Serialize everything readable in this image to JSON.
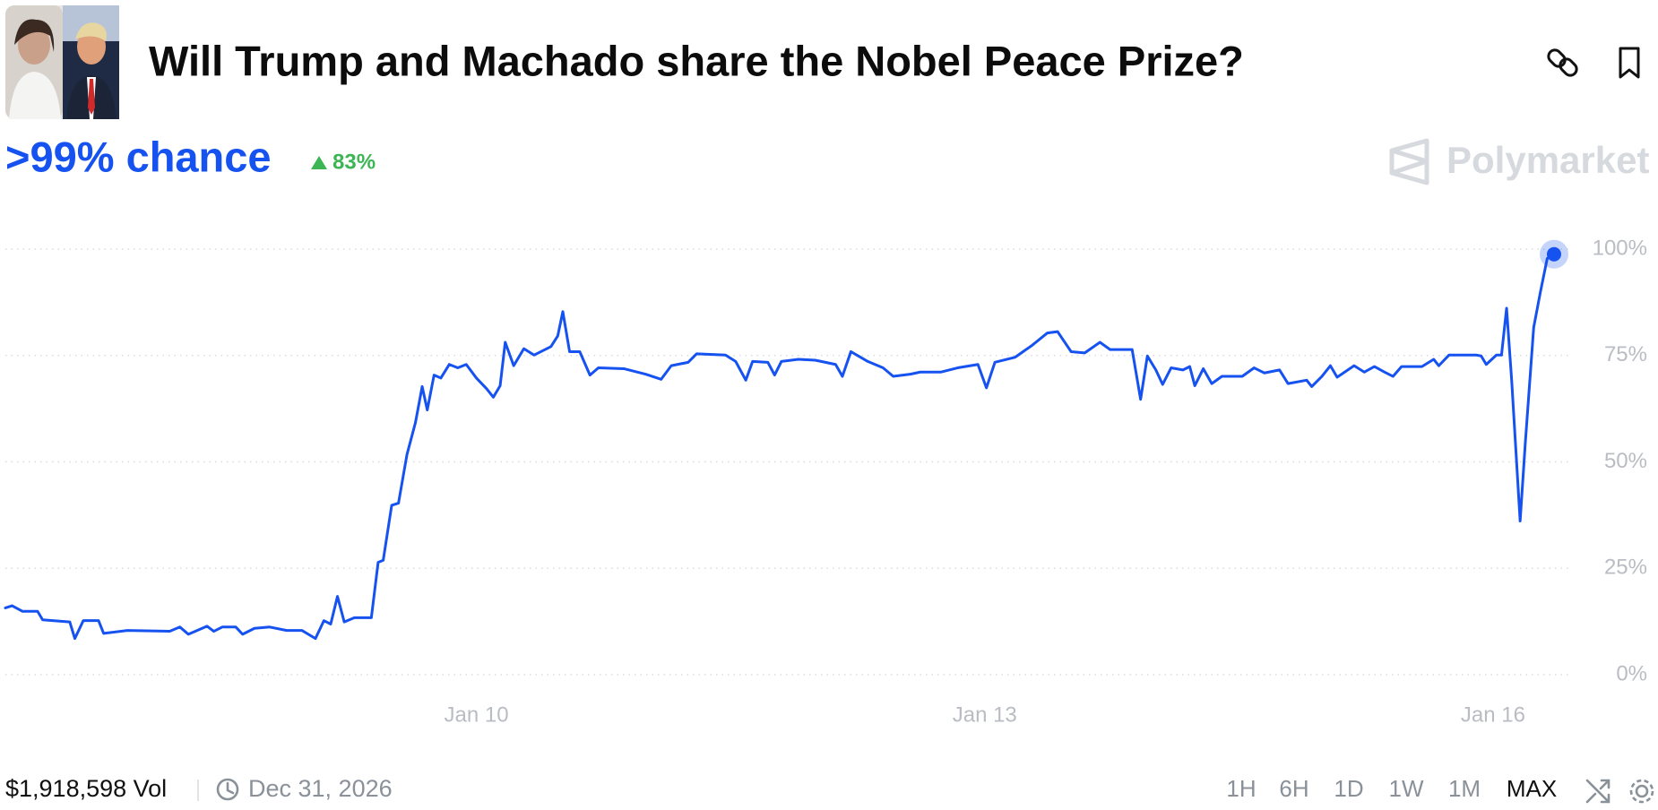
{
  "header": {
    "title": "Will Trump and Machado share the Nobel Peace Prize?"
  },
  "chart_data": {
    "type": "line",
    "headline": ">99% chance",
    "change": "83%",
    "brand": "Polymarket",
    "x": [
      7.22,
      7.26,
      7.32,
      7.41,
      7.44,
      7.6,
      7.63,
      7.68,
      7.77,
      7.8,
      7.94,
      8.19,
      8.25,
      8.3,
      8.41,
      8.45,
      8.5,
      8.58,
      8.62,
      8.69,
      8.78,
      8.88,
      8.97,
      9.05,
      9.1,
      9.14,
      9.18,
      9.22,
      9.28,
      9.38,
      9.42,
      9.45,
      9.5,
      9.54,
      9.59,
      9.64,
      9.68,
      9.71,
      9.75,
      9.79,
      9.84,
      9.89,
      9.94,
      10.0,
      10.06,
      10.1,
      10.14,
      10.17,
      10.22,
      10.28,
      10.34,
      10.44,
      10.48,
      10.51,
      10.55,
      10.61,
      10.67,
      10.72,
      10.87,
      11.0,
      11.09,
      11.15,
      11.25,
      11.3,
      11.47,
      11.53,
      11.59,
      11.63,
      11.72,
      11.76,
      11.8,
      11.9,
      12.0,
      12.12,
      12.16,
      12.21,
      12.31,
      12.4,
      12.46,
      12.56,
      12.62,
      12.74,
      12.84,
      12.96,
      13.01,
      13.06,
      13.18,
      13.28,
      13.37,
      13.43,
      13.51,
      13.59,
      13.68,
      13.74,
      13.87,
      13.92,
      13.96,
      14.01,
      14.05,
      14.1,
      14.17,
      14.21,
      14.24,
      14.29,
      14.34,
      14.4,
      14.52,
      14.59,
      14.65,
      14.74,
      14.79,
      14.9,
      14.93,
      14.99,
      15.04,
      15.08,
      15.18,
      15.24,
      15.3,
      15.36,
      15.41,
      15.46,
      15.58,
      15.65,
      15.68,
      15.74,
      15.9,
      15.93,
      15.96,
      16.02,
      16.05,
      16.08,
      16.11,
      16.16,
      16.19,
      16.24,
      16.28,
      16.32,
      16.36
    ],
    "series": [
      {
        "color": "#1652f0",
        "values": [
          15.7,
          16.2,
          14.9,
          14.9,
          12.9,
          12.4,
          8.5,
          12.7,
          12.7,
          9.7,
          10.4,
          10.2,
          11.2,
          9.5,
          11.4,
          10.2,
          11.2,
          11.2,
          9.5,
          10.9,
          11.2,
          10.4,
          10.4,
          8.5,
          12.7,
          11.9,
          18.4,
          12.4,
          13.4,
          13.4,
          26.4,
          26.9,
          39.8,
          40.3,
          51.7,
          59.2,
          67.7,
          62.2,
          70.4,
          69.7,
          72.9,
          72.1,
          72.9,
          69.7,
          67.2,
          65.2,
          67.9,
          78.1,
          72.6,
          76.6,
          75.1,
          77.1,
          79.6,
          85.3,
          75.9,
          75.9,
          70.4,
          72.1,
          71.9,
          70.6,
          69.4,
          72.6,
          73.4,
          75.4,
          75.1,
          73.6,
          69.2,
          73.6,
          73.4,
          70.4,
          73.6,
          74.1,
          73.9,
          72.9,
          70.1,
          75.9,
          73.6,
          72.1,
          70.1,
          70.6,
          71.1,
          71.1,
          72.1,
          72.9,
          67.4,
          73.4,
          74.6,
          77.4,
          80.3,
          80.6,
          75.9,
          75.6,
          78.1,
          76.4,
          76.4,
          64.7,
          74.9,
          71.6,
          68.2,
          72.1,
          71.6,
          72.4,
          67.9,
          71.9,
          68.4,
          70.1,
          70.1,
          72.1,
          70.9,
          71.6,
          68.4,
          69.2,
          67.7,
          70.1,
          72.6,
          69.9,
          72.6,
          71.1,
          72.4,
          71.1,
          70.1,
          72.4,
          72.4,
          74.1,
          72.6,
          75.1,
          75.1,
          74.9,
          72.9,
          75.1,
          75.1,
          86.1,
          69.2,
          36.1,
          54.2,
          81.6,
          90.0,
          97.8,
          98.8
        ]
      }
    ],
    "xlim": [
      7.22,
      16.45
    ],
    "ylim": [
      0,
      100
    ],
    "xticks": [
      {
        "value": 10,
        "label": "Jan 10"
      },
      {
        "value": 13,
        "label": "Jan 13"
      },
      {
        "value": 16,
        "label": "Jan 16"
      }
    ],
    "yticks": [
      {
        "value": 0,
        "label": "0%"
      },
      {
        "value": 25,
        "label": "25%"
      },
      {
        "value": 50,
        "label": "50%"
      },
      {
        "value": 75,
        "label": "75%"
      },
      {
        "value": 100,
        "label": "100%"
      }
    ],
    "grid": true
  },
  "footer": {
    "volume": "$1,918,598 Vol",
    "end_date": "Dec 31, 2026",
    "ranges": [
      "1H",
      "6H",
      "1D",
      "1W",
      "1M",
      "MAX"
    ],
    "active_range": 5
  }
}
